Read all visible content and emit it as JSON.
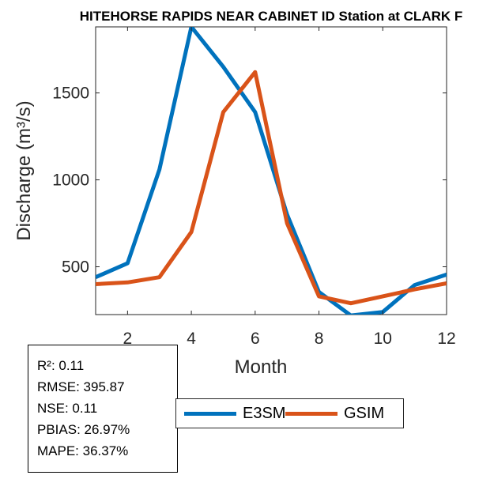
{
  "chart_data": {
    "type": "line",
    "title": "HITEHORSE RAPIDS NEAR CABINET ID  Station at  CLARK F",
    "xlabel": "Month",
    "ylabel": "Discharge (m³/s)",
    "xlim": [
      1,
      12
    ],
    "ylim": [
      225,
      1880
    ],
    "xticks": [
      2,
      4,
      6,
      8,
      10,
      12
    ],
    "yticks": [
      500,
      1000,
      1500
    ],
    "x": [
      1,
      2,
      3,
      4,
      5,
      6,
      7,
      8,
      9,
      10,
      11,
      12
    ],
    "series": [
      {
        "name": "E3SM",
        "color": "#0072BD",
        "values": [
          440,
          520,
          1060,
          1880,
          1650,
          1390,
          800,
          355,
          220,
          240,
          395,
          455
        ]
      },
      {
        "name": "GSIM",
        "color": "#D95319",
        "values": [
          400,
          410,
          440,
          700,
          1390,
          1620,
          750,
          330,
          290,
          330,
          370,
          405
        ]
      }
    ],
    "grid": false,
    "legend": "bottom-center"
  },
  "stats": [
    "R²: 0.11",
    "RMSE: 395.87",
    "NSE: 0.11",
    "PBIAS: 26.97%",
    "MAPE: 36.37%"
  ]
}
